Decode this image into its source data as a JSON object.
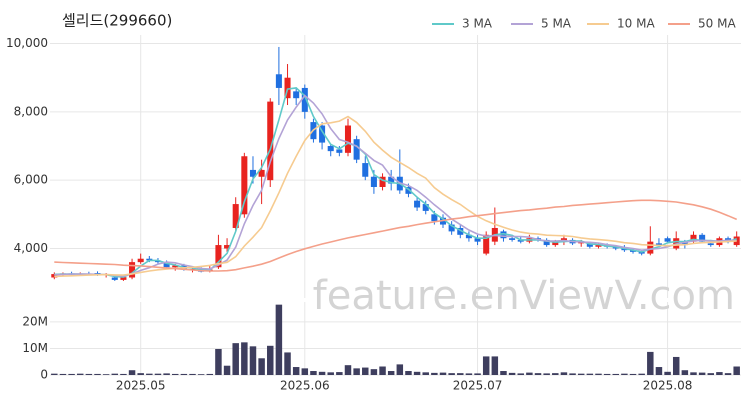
{
  "chart_data": [
    {
      "type": "candlestick",
      "title": "셀리드(299660)",
      "watermark": "feature.enViewV.com",
      "up_color": "#e8231f",
      "down_color": "#1f6fe0",
      "grid": true,
      "ylim": [
        2550,
        10250
      ],
      "yticks": [
        {
          "value": 4000,
          "label": "4,000"
        },
        {
          "value": 6000,
          "label": "6,000"
        },
        {
          "value": 8000,
          "label": "8,000"
        },
        {
          "value": 10000,
          "label": "10,000"
        }
      ],
      "open": [
        3150,
        3250,
        3270,
        3230,
        3260,
        3280,
        3220,
        3150,
        3080,
        3150,
        3600,
        3700,
        3650,
        3600,
        3450,
        3500,
        3380,
        3400,
        3350,
        3450,
        4000,
        4600,
        5000,
        6300,
        6100,
        6000,
        9100,
        8400,
        8600,
        8700,
        7700,
        7600,
        7000,
        6900,
        6800,
        7200,
        6500,
        6100,
        5800,
        6100,
        6100,
        5800,
        5400,
        5300,
        5000,
        4900,
        4700,
        4600,
        4400,
        4300,
        3850,
        4200,
        4500,
        4300,
        4250,
        4200,
        4300,
        4250,
        4100,
        4200,
        4250,
        4150,
        4150,
        4050,
        4100,
        4050,
        4000,
        3950,
        3900,
        3850,
        4150,
        4300,
        4000,
        4200,
        4200,
        4400,
        4150,
        4100,
        4300,
        4100
      ],
      "high": [
        3300,
        3300,
        3320,
        3300,
        3320,
        3330,
        3280,
        3200,
        3200,
        3700,
        3850,
        3780,
        3720,
        3650,
        3550,
        3550,
        3450,
        3450,
        3500,
        4400,
        4300,
        5500,
        6800,
        6700,
        6600,
        8400,
        9900,
        9400,
        8700,
        8800,
        7800,
        7700,
        7050,
        7000,
        7800,
        7300,
        6700,
        6300,
        6200,
        6300,
        6900,
        5900,
        5500,
        5400,
        5100,
        5000,
        4800,
        4700,
        4500,
        4400,
        4500,
        5200,
        4550,
        4400,
        4350,
        4400,
        4350,
        4300,
        4250,
        4400,
        4300,
        4250,
        4200,
        4150,
        4150,
        4100,
        4100,
        4000,
        3950,
        4650,
        4300,
        4350,
        4500,
        4250,
        4500,
        4450,
        4250,
        4350,
        4350,
        4500
      ],
      "low": [
        3100,
        3200,
        3200,
        3200,
        3220,
        3200,
        3150,
        3050,
        3050,
        3100,
        3550,
        3600,
        3550,
        3400,
        3350,
        3350,
        3300,
        3300,
        3300,
        3400,
        3900,
        4500,
        4900,
        5900,
        5300,
        5800,
        8200,
        8200,
        8200,
        7800,
        7100,
        6900,
        6700,
        6700,
        6700,
        6500,
        6000,
        5600,
        5700,
        5700,
        5600,
        5500,
        5100,
        5000,
        4700,
        4600,
        4400,
        4300,
        4200,
        4100,
        3800,
        4100,
        4200,
        4200,
        4150,
        4150,
        4200,
        4050,
        4050,
        4100,
        4100,
        4050,
        4000,
        4000,
        4000,
        3950,
        3900,
        3850,
        3800,
        3800,
        4050,
        4150,
        3950,
        4000,
        4150,
        4150,
        4050,
        4050,
        4150,
        4050
      ],
      "close": [
        3250,
        3270,
        3230,
        3260,
        3240,
        3210,
        3250,
        3080,
        3160,
        3600,
        3700,
        3650,
        3600,
        3450,
        3500,
        3380,
        3400,
        3320,
        3380,
        4100,
        4100,
        5300,
        6700,
        6100,
        6300,
        8300,
        8700,
        9000,
        8400,
        8000,
        7200,
        7100,
        6850,
        6800,
        7600,
        6600,
        6100,
        5800,
        6100,
        5900,
        5700,
        5600,
        5200,
        5100,
        4800,
        4700,
        4500,
        4400,
        4300,
        4200,
        4400,
        4600,
        4300,
        4250,
        4200,
        4300,
        4250,
        4100,
        4200,
        4300,
        4150,
        4200,
        4050,
        4100,
        4050,
        4000,
        3950,
        3900,
        3850,
        4200,
        4100,
        4200,
        4300,
        4100,
        4400,
        4200,
        4100,
        4300,
        4200,
        4350
      ],
      "legend": "top-right",
      "series": [
        {
          "name": "3 MA",
          "color": "#5fc9c9",
          "values": [
            3240,
            3250,
            3250,
            3253,
            3243,
            3237,
            3233,
            3180,
            3163,
            3280,
            3487,
            3650,
            3650,
            3567,
            3517,
            3443,
            3427,
            3367,
            3367,
            3600,
            3860,
            4500,
            5367,
            6033,
            6367,
            6900,
            7767,
            8667,
            8700,
            8467,
            7867,
            7433,
            7050,
            6917,
            7083,
            7000,
            6767,
            6167,
            6000,
            5933,
            5900,
            5733,
            5500,
            5300,
            5033,
            4867,
            4667,
            4533,
            4400,
            4300,
            4300,
            4400,
            4433,
            4383,
            4250,
            4250,
            4250,
            4217,
            4183,
            4200,
            4217,
            4217,
            4133,
            4117,
            4067,
            4050,
            4000,
            3950,
            3900,
            3983,
            4050,
            4167,
            4200,
            4200,
            4267,
            4233,
            4233,
            4200,
            4200,
            4283
          ]
        },
        {
          "name": "5 MA",
          "color": "#b3a3d6",
          "values": [
            3230,
            3240,
            3250,
            3250,
            3250,
            3242,
            3238,
            3214,
            3188,
            3260,
            3358,
            3438,
            3542,
            3600,
            3580,
            3516,
            3466,
            3410,
            3396,
            3516,
            3660,
            4040,
            4720,
            5260,
            5700,
            6540,
            7220,
            7760,
            8140,
            8480,
            8260,
            7940,
            7510,
            7190,
            7110,
            6990,
            6790,
            6580,
            6440,
            6100,
            5920,
            5840,
            5700,
            5500,
            5280,
            5080,
            4860,
            4700,
            4540,
            4420,
            4360,
            4380,
            4360,
            4350,
            4350,
            4330,
            4260,
            4220,
            4220,
            4230,
            4200,
            4190,
            4180,
            4160,
            4110,
            4080,
            4030,
            4000,
            3950,
            3980,
            4000,
            4050,
            4130,
            4180,
            4220,
            4240,
            4220,
            4220,
            4240,
            4230
          ]
        },
        {
          "name": "10 MA",
          "color": "#f6cb90",
          "values": [
            3180,
            3190,
            3200,
            3210,
            3220,
            3230,
            3235,
            3225,
            3220,
            3255,
            3300,
            3340,
            3375,
            3395,
            3420,
            3435,
            3450,
            3475,
            3505,
            3555,
            3595,
            3760,
            4070,
            4330,
            4610,
            5100,
            5630,
            6200,
            6700,
            7160,
            7470,
            7650,
            7680,
            7730,
            7860,
            7690,
            7430,
            7110,
            6880,
            6670,
            6520,
            6370,
            6200,
            6060,
            5780,
            5590,
            5430,
            5290,
            5110,
            4940,
            4810,
            4710,
            4620,
            4540,
            4480,
            4440,
            4420,
            4390,
            4380,
            4370,
            4350,
            4310,
            4280,
            4260,
            4240,
            4210,
            4170,
            4150,
            4110,
            4100,
            4090,
            4080,
            4100,
            4110,
            4150,
            4170,
            4180,
            4190,
            4200,
            4220
          ]
        },
        {
          "name": "50 MA",
          "color": "#f4a08a",
          "values": [
            3600,
            3590,
            3580,
            3570,
            3560,
            3550,
            3540,
            3530,
            3510,
            3500,
            3490,
            3470,
            3450,
            3430,
            3410,
            3390,
            3370,
            3350,
            3340,
            3340,
            3350,
            3380,
            3430,
            3480,
            3540,
            3620,
            3720,
            3820,
            3910,
            3990,
            4060,
            4130,
            4190,
            4250,
            4310,
            4360,
            4410,
            4460,
            4510,
            4560,
            4610,
            4650,
            4700,
            4740,
            4780,
            4820,
            4860,
            4890,
            4930,
            4960,
            4990,
            5020,
            5050,
            5080,
            5110,
            5130,
            5160,
            5180,
            5210,
            5230,
            5260,
            5280,
            5300,
            5320,
            5340,
            5360,
            5380,
            5400,
            5410,
            5410,
            5400,
            5380,
            5360,
            5320,
            5280,
            5220,
            5150,
            5060,
            4960,
            4850
          ]
        }
      ]
    },
    {
      "type": "bar",
      "color": "#3e3e5e",
      "grid": true,
      "ylim": [
        0,
        27500000
      ],
      "yticks": [
        0,
        {
          "value": 10000000,
          "label": "10M"
        },
        {
          "value": 20000000,
          "label": "20M"
        }
      ],
      "categories": [
        null,
        null,
        null,
        null,
        null,
        null,
        null,
        null,
        null,
        null,
        "2025.05",
        null,
        null,
        null,
        null,
        null,
        null,
        null,
        null,
        null,
        null,
        null,
        null,
        null,
        null,
        null,
        null,
        null,
        null,
        "2025.06",
        null,
        null,
        null,
        null,
        null,
        null,
        null,
        null,
        null,
        null,
        null,
        null,
        null,
        null,
        null,
        null,
        null,
        null,
        null,
        "2025.07",
        null,
        null,
        null,
        null,
        null,
        null,
        null,
        null,
        null,
        null,
        null,
        null,
        null,
        null,
        null,
        null,
        null,
        null,
        null,
        null,
        null,
        "2025.08",
        null,
        null,
        null,
        null,
        null,
        null,
        null,
        null
      ],
      "values": [
        500000,
        400000,
        400000,
        500000,
        400000,
        400000,
        300000,
        500000,
        400000,
        1800000,
        700000,
        500000,
        500000,
        600000,
        400000,
        400000,
        400000,
        300000,
        400000,
        9800000,
        3500000,
        12000000,
        12300000,
        10800000,
        6300000,
        11000000,
        26500000,
        8500000,
        3000000,
        2500000,
        1500000,
        1200000,
        1000000,
        1100000,
        3700000,
        2500000,
        2800000,
        2200000,
        3200000,
        1500000,
        4000000,
        1500000,
        1200000,
        1000000,
        800000,
        900000,
        700000,
        700000,
        600000,
        600000,
        7000000,
        7000000,
        1500000,
        800000,
        600000,
        900000,
        700000,
        600000,
        700000,
        1000000,
        600000,
        500000,
        500000,
        500000,
        400000,
        400000,
        500000,
        400000,
        500000,
        8700000,
        3000000,
        1200000,
        6800000,
        1800000,
        1000000,
        900000,
        700000,
        1100000,
        700000,
        3200000
      ]
    }
  ]
}
